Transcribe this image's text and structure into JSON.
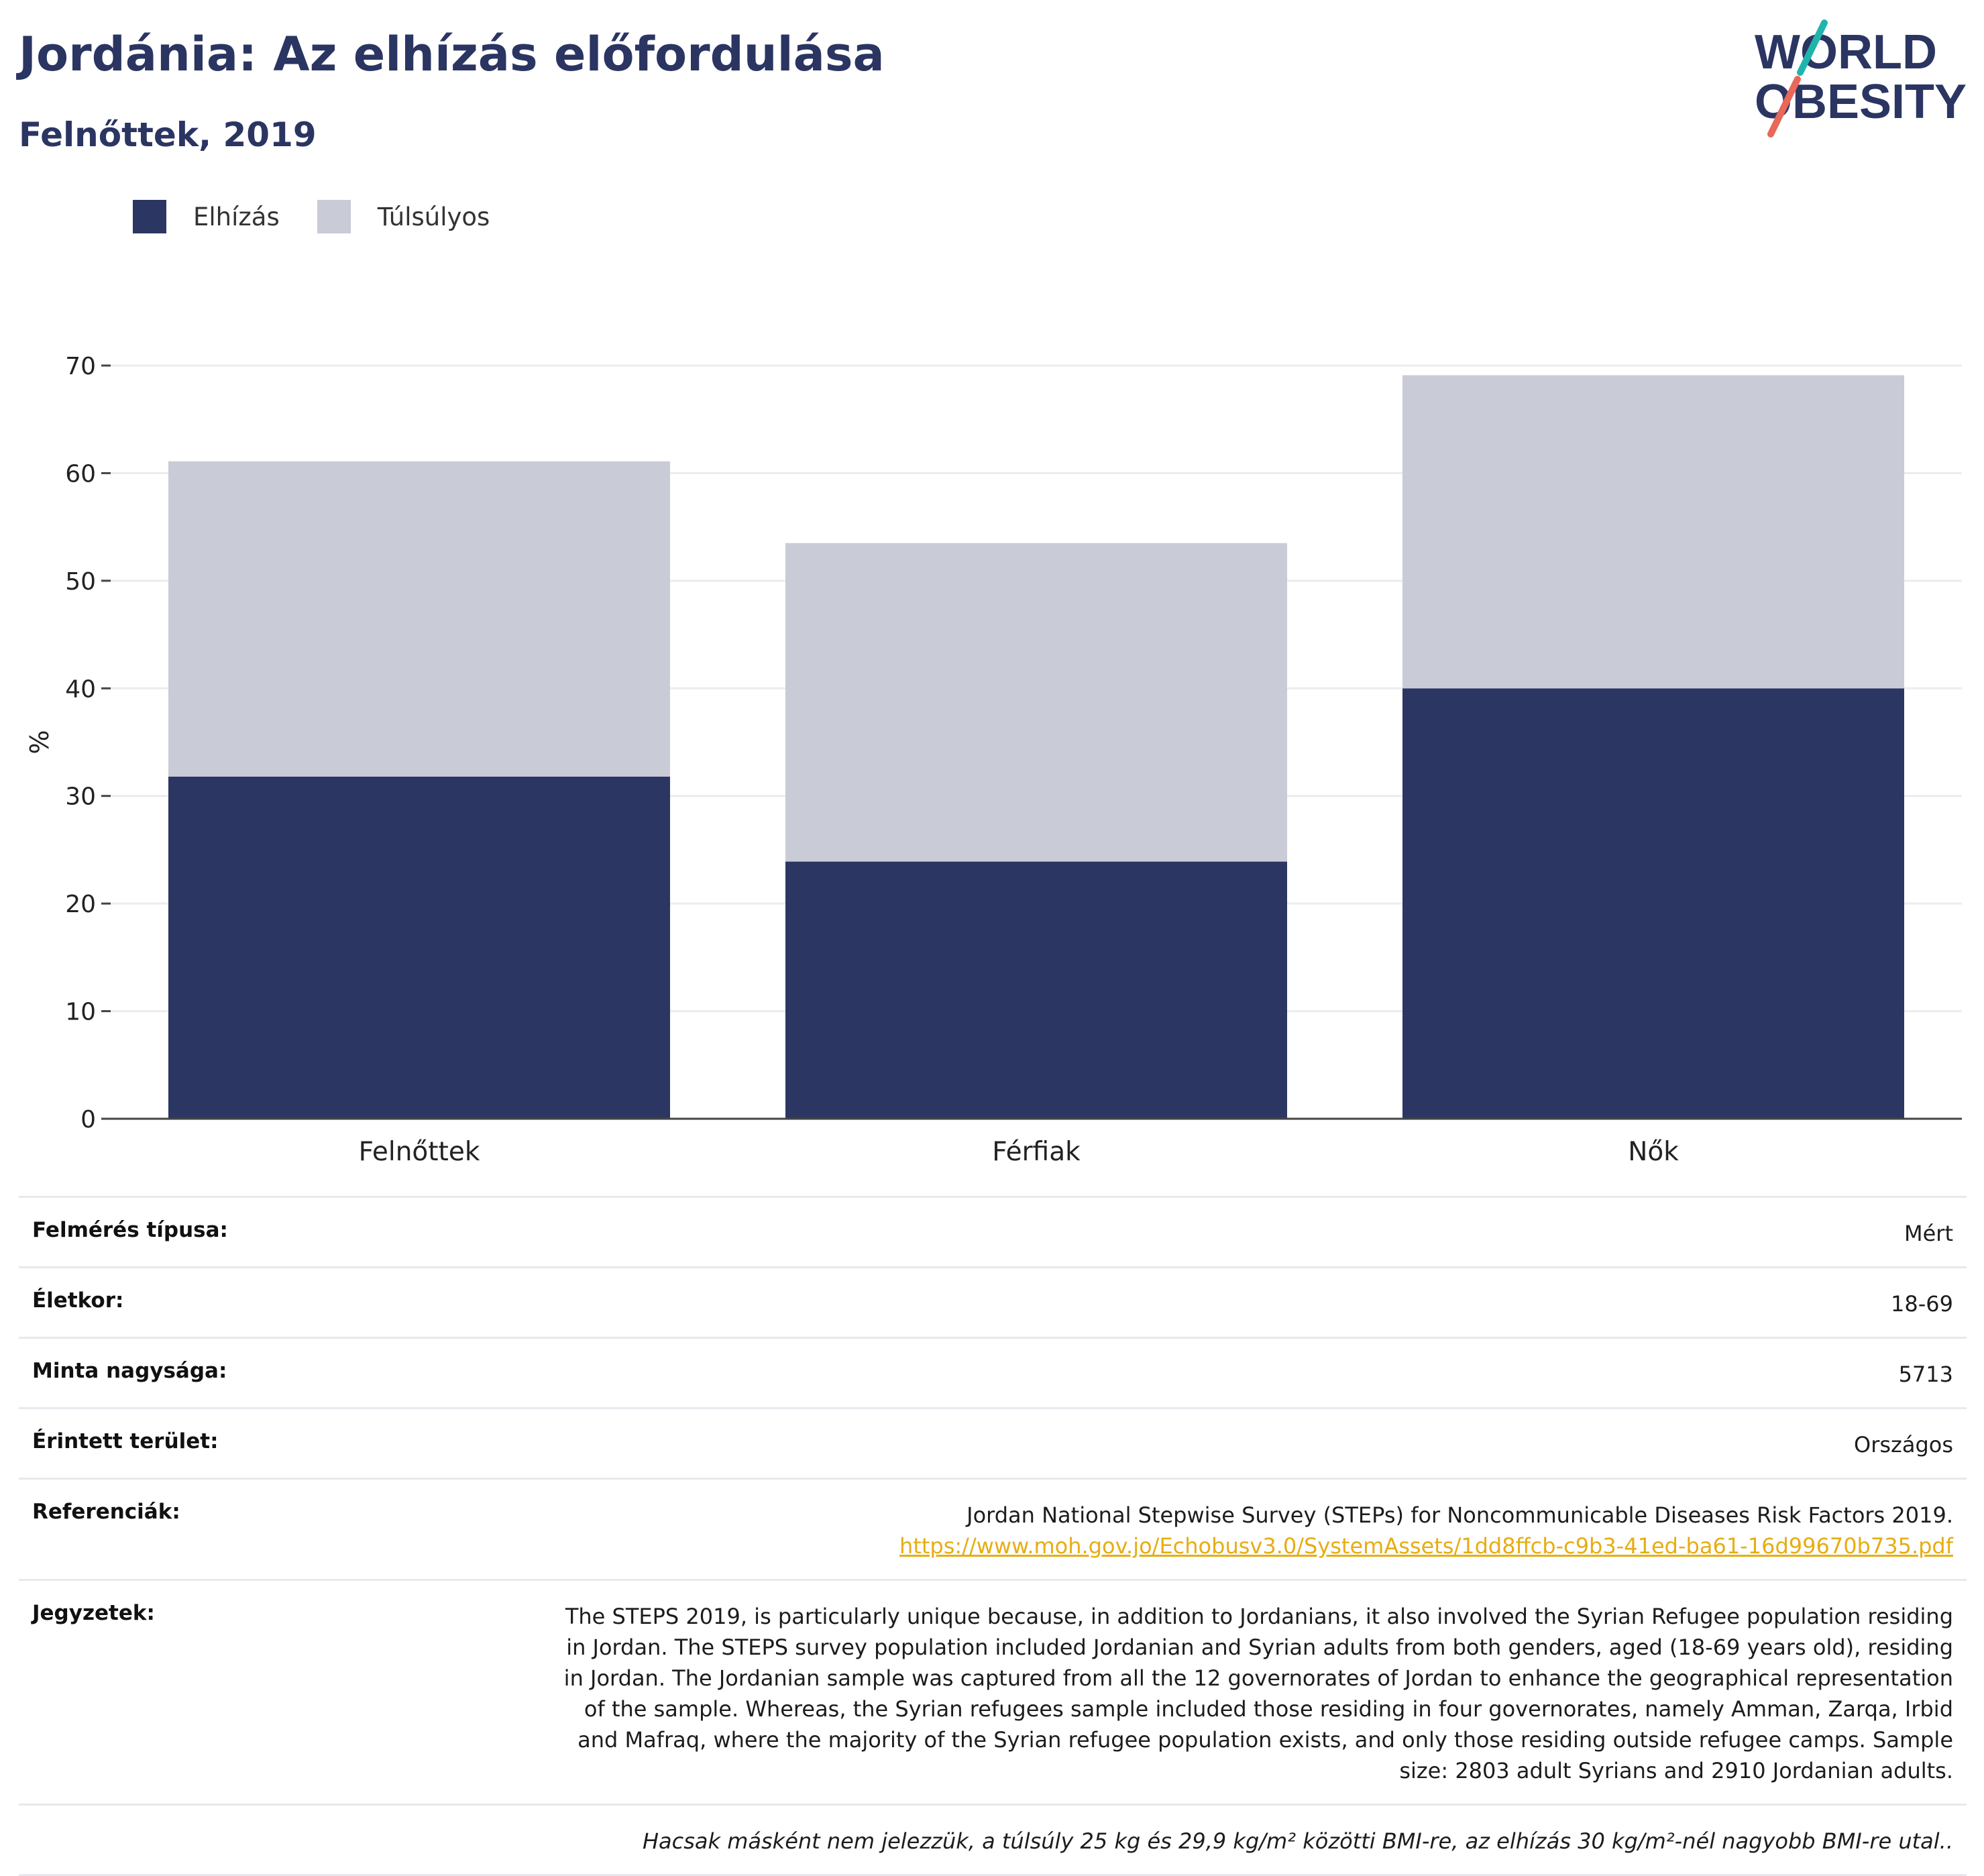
{
  "header": {
    "title": "Jordánia: Az elhízás előfordulása",
    "subtitle": "Felnőttek, 2019"
  },
  "logo": {
    "line1": "WORLD",
    "line2": "OBESITY"
  },
  "colors": {
    "obesity": "#2b3663",
    "overweight": "#c9cbd7",
    "title": "#2b3562",
    "link": "#e6ad12"
  },
  "chart_data": {
    "type": "bar",
    "stacked": true,
    "categories": [
      "Felnőttek",
      "Férfiak",
      "Nők"
    ],
    "series": [
      {
        "name": "Elhízás",
        "values": [
          31.8,
          23.9,
          40.0
        ]
      },
      {
        "name": "Túlsúlyos",
        "values": [
          29.3,
          29.6,
          29.1
        ]
      }
    ],
    "ylabel": "%",
    "ylim": [
      0,
      70
    ],
    "yticks": [
      0,
      10,
      20,
      30,
      40,
      50,
      60,
      70
    ],
    "grid": true,
    "legend": "top-left"
  },
  "meta": {
    "survey_type": {
      "label": "Felmérés típusa:",
      "value": "Mért"
    },
    "age": {
      "label": "Életkor:",
      "value": "18-69"
    },
    "sample": {
      "label": "Minta nagysága:",
      "value": "5713"
    },
    "area": {
      "label": "Érintett terület:",
      "value": "Országos"
    },
    "references": {
      "label": "Referenciák:",
      "text": "Jordan National Stepwise Survey (STEPs) for Noncommunicable Diseases Risk Factors 2019.",
      "link": "https://www.moh.gov.jo/Echobusv3.0/SystemAssets/1dd8ffcb-c9b3-41ed-ba61-16d99670b735.pdf"
    },
    "notes": {
      "label": "Jegyzetek:",
      "value": "The STEPS 2019, is particularly unique because, in addition to Jordanians, it also involved the Syrian Refugee population residing in Jordan. The STEPS survey population included Jordanian and Syrian adults from both genders, aged (18-69 years old), residing in Jordan. The Jordanian sample was captured from all the 12 governorates of Jordan to enhance the geographical representation of the sample. Whereas, the Syrian refugees sample included those residing in four governorates, namely Amman, Zarqa, Irbid and Mafraq, where the majority of the Syrian refugee population exists, and only those residing outside refugee camps. Sample size: 2803 adult Syrians and 2910 Jordanian adults."
    },
    "footnote": "Hacsak másként nem jelezzük, a túlsúly 25 kg és 29,9 kg/m² közötti BMI-re, az elhízás 30 kg/m²-nél nagyobb BMI-re utal.."
  }
}
